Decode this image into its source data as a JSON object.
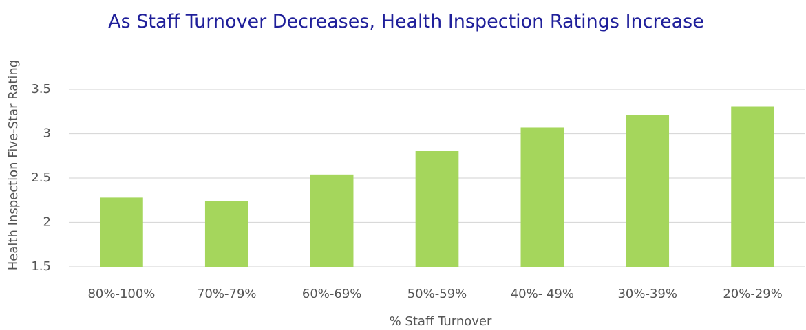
{
  "chart_data": {
    "type": "bar",
    "title": "As Staff Turnover Decreases, Health Inspection Ratings Increase",
    "x_label": "% Staff Turnover",
    "y_label": "Health Inspection Five-Star Rating",
    "categories": [
      "80%-100%",
      "70%-79%",
      "60%-69%",
      "50%-59%",
      "40%- 49%",
      "30%-39%",
      "20%-29%"
    ],
    "values": [
      2.28,
      2.24,
      2.54,
      2.81,
      3.07,
      3.21,
      3.31
    ],
    "color": "#a5d65c",
    "ylim": [
      1.5,
      3.5
    ],
    "yticks": [
      1.5,
      2,
      2.5,
      3,
      3.5
    ],
    "grid": true
  }
}
